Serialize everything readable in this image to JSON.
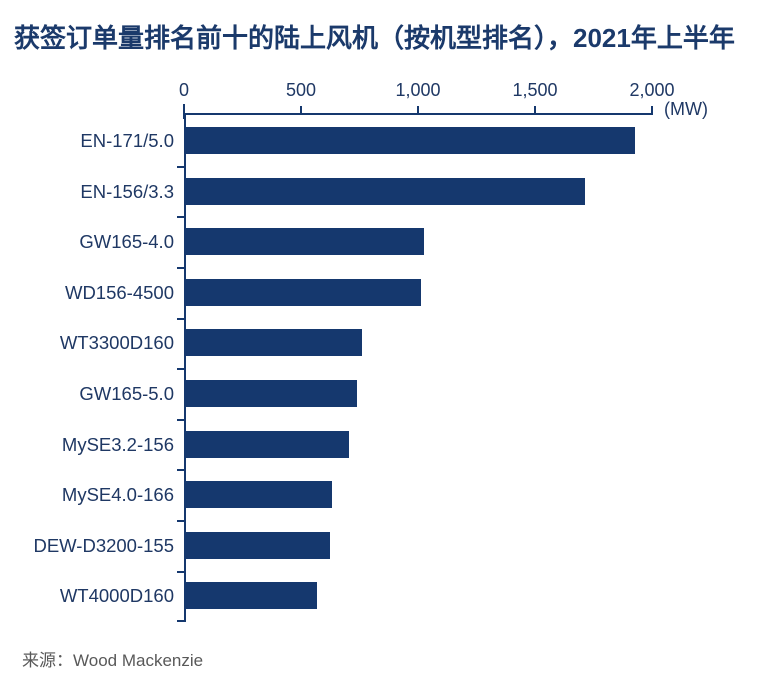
{
  "title": "获签订单量排名前十的陆上风机（按机型排名），2021年上半年",
  "source_label": "来源：Wood Mackenzie",
  "chart_data": {
    "type": "bar",
    "orientation": "horizontal",
    "title": "获签订单量排名前十的陆上风机（按机型排名），2021年上半年",
    "unit_label": "(MW)",
    "categories": [
      "EN-171/5.0",
      "EN-156/3.3",
      "GW165-4.0",
      "WD156-4500",
      "WT3300D160",
      "GW165-5.0",
      "MySE3.2-156",
      "MySE4.0-166",
      "DEW-D3200-155",
      "WT4000D160"
    ],
    "values": [
      1920,
      1705,
      1015,
      1005,
      750,
      730,
      695,
      625,
      615,
      560
    ],
    "xlabel": "",
    "ylabel": "",
    "xlim": [
      0,
      2000
    ],
    "x_ticks": [
      {
        "value": 0,
        "label": "0"
      },
      {
        "value": 500,
        "label": "500"
      },
      {
        "value": 1000,
        "label": "1,000"
      },
      {
        "value": 1500,
        "label": "1,500"
      },
      {
        "value": 2000,
        "label": "2,000"
      }
    ],
    "grid": "off",
    "legend": "none",
    "source": "Wood Mackenzie",
    "colors": {
      "bar": "#15386e",
      "axis": "#15386e",
      "tick_label": "#1f3864",
      "category_label": "#1f3864",
      "title": "#1b3a6b",
      "source_text": "#595959",
      "background": "#ffffff"
    }
  }
}
